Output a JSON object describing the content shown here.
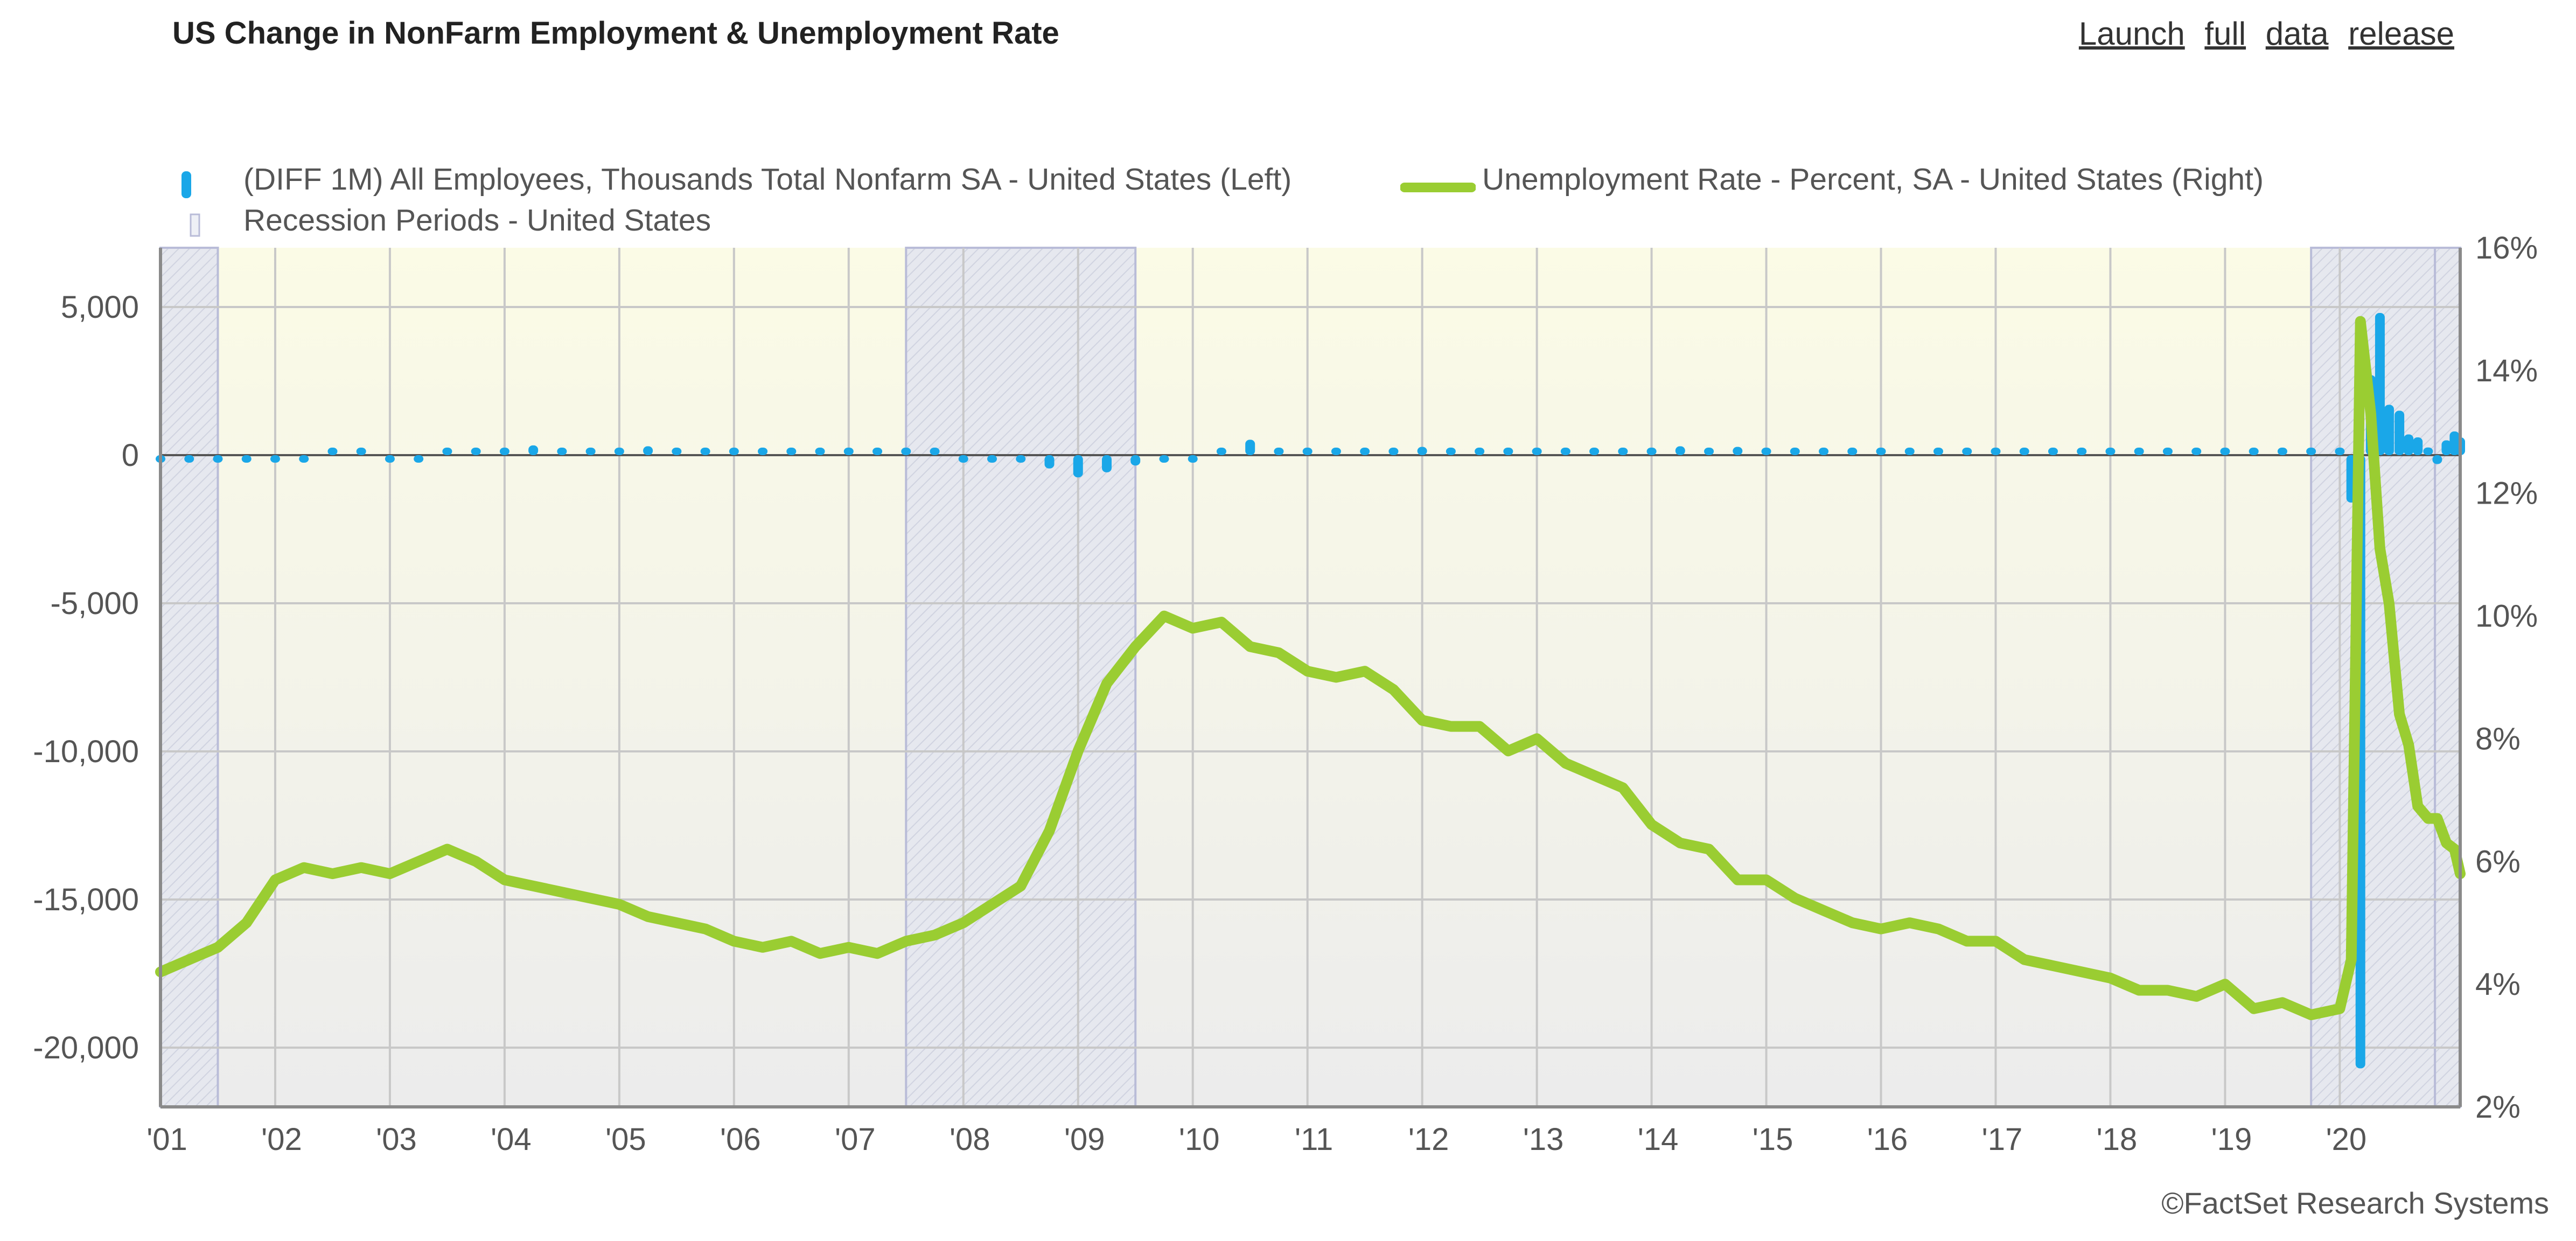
{
  "header": {
    "title": "US Change in NonFarm Employment & Unemployment Rate",
    "release_words": [
      "Launch",
      "full",
      "data",
      "release"
    ]
  },
  "legend": {
    "series1_label": "(DIFF 1M) All Employees, Thousands Total Nonfarm SA - United States (Left)",
    "series2_label": "Unemployment Rate - Percent, SA - United States (Right)",
    "recession_label": "Recession Periods - United States"
  },
  "footer": {
    "copyright": "©FactSet Research Systems"
  },
  "colors": {
    "payrolls": "#1aa7e8",
    "unemployment": "#9acd32",
    "recession_fill": "#e6e8ef",
    "recession_border": "#b9bcd8",
    "grid": "#c8c8c8",
    "plot_top": "#fbfbe6",
    "plot_bottom": "#ececec"
  },
  "chart_data": {
    "type": "line",
    "x_ticks": [
      "'01",
      "'02",
      "'03",
      "'04",
      "'05",
      "'06",
      "'07",
      "'08",
      "'09",
      "'10",
      "'11",
      "'12",
      "'13",
      "'14",
      "'15",
      "'16",
      "'17",
      "'18",
      "'19",
      "'20"
    ],
    "x_range": [
      2001.0,
      2021.05
    ],
    "y_left": {
      "range": [
        -22000,
        7000
      ],
      "ticks": [
        5000,
        0,
        -5000,
        -10000,
        -15000,
        -20000
      ],
      "tick_labels": [
        "5,000",
        "0",
        "-5,000",
        "-10,000",
        "-15,000",
        "-20,000"
      ]
    },
    "y_right": {
      "range": [
        2,
        16
      ],
      "ticks": [
        16,
        14,
        12,
        10,
        8,
        6,
        4,
        2
      ],
      "tick_labels": [
        "16%",
        "14%",
        "12%",
        "10%",
        "8%",
        "6%",
        "4%",
        "2%"
      ]
    },
    "recessions": [
      [
        2001.0,
        2001.5
      ],
      [
        2007.5,
        2009.5
      ],
      [
        2019.75,
        2020.83
      ],
      [
        2020.83,
        2021.05
      ]
    ],
    "series": [
      {
        "name": "(DIFF 1M) All Employees, Thousands Total Nonfarm SA - United States (Left)",
        "axis": "left",
        "points": [
          [
            2001.0,
            -80
          ],
          [
            2001.25,
            -120
          ],
          [
            2001.5,
            -200
          ],
          [
            2001.75,
            -250
          ],
          [
            2002.0,
            -120
          ],
          [
            2002.25,
            -40
          ],
          [
            2002.5,
            50
          ],
          [
            2002.75,
            0
          ],
          [
            2003.0,
            -150
          ],
          [
            2003.25,
            -60
          ],
          [
            2003.5,
            30
          ],
          [
            2003.75,
            150
          ],
          [
            2004.0,
            120
          ],
          [
            2004.25,
            330
          ],
          [
            2004.5,
            150
          ],
          [
            2004.75,
            180
          ],
          [
            2005.0,
            200
          ],
          [
            2005.25,
            300
          ],
          [
            2005.5,
            230
          ],
          [
            2005.75,
            80
          ],
          [
            2006.0,
            250
          ],
          [
            2006.25,
            180
          ],
          [
            2006.5,
            160
          ],
          [
            2006.75,
            130
          ],
          [
            2007.0,
            100
          ],
          [
            2007.25,
            120
          ],
          [
            2007.5,
            80
          ],
          [
            2007.75,
            60
          ],
          [
            2008.0,
            -20
          ],
          [
            2008.25,
            -140
          ],
          [
            2008.5,
            -200
          ],
          [
            2008.75,
            -450
          ],
          [
            2009.0,
            -750
          ],
          [
            2009.25,
            -580
          ],
          [
            2009.5,
            -350
          ],
          [
            2009.75,
            -200
          ],
          [
            2010.0,
            -60
          ],
          [
            2010.25,
            250
          ],
          [
            2010.5,
            520
          ],
          [
            2010.75,
            100
          ],
          [
            2011.0,
            60
          ],
          [
            2011.25,
            230
          ],
          [
            2011.5,
            110
          ],
          [
            2011.75,
            150
          ],
          [
            2012.0,
            280
          ],
          [
            2012.25,
            130
          ],
          [
            2012.5,
            150
          ],
          [
            2012.75,
            170
          ],
          [
            2013.0,
            200
          ],
          [
            2013.25,
            160
          ],
          [
            2013.5,
            180
          ],
          [
            2013.75,
            200
          ],
          [
            2014.0,
            180
          ],
          [
            2014.25,
            300
          ],
          [
            2014.5,
            230
          ],
          [
            2014.75,
            280
          ],
          [
            2015.0,
            200
          ],
          [
            2015.25,
            230
          ],
          [
            2015.5,
            220
          ],
          [
            2015.75,
            250
          ],
          [
            2016.0,
            180
          ],
          [
            2016.25,
            120
          ],
          [
            2016.5,
            240
          ],
          [
            2016.75,
            180
          ],
          [
            2017.0,
            200
          ],
          [
            2017.25,
            180
          ],
          [
            2017.5,
            190
          ],
          [
            2017.75,
            100
          ],
          [
            2018.0,
            200
          ],
          [
            2018.25,
            230
          ],
          [
            2018.5,
            170
          ],
          [
            2018.75,
            160
          ],
          [
            2019.0,
            250
          ],
          [
            2019.25,
            80
          ],
          [
            2019.5,
            160
          ],
          [
            2019.75,
            200
          ],
          [
            2020.0,
            250
          ],
          [
            2020.1,
            -1600
          ],
          [
            2020.18,
            -20700
          ],
          [
            2020.27,
            2700
          ],
          [
            2020.35,
            4800
          ],
          [
            2020.43,
            1700
          ],
          [
            2020.52,
            1500
          ],
          [
            2020.6,
            700
          ],
          [
            2020.68,
            600
          ],
          [
            2020.77,
            260
          ],
          [
            2020.85,
            -300
          ],
          [
            2020.93,
            500
          ],
          [
            2021.0,
            800
          ],
          [
            2021.05,
            600
          ]
        ]
      },
      {
        "name": "Unemployment Rate - Percent, SA - United States (Right)",
        "axis": "right",
        "points": [
          [
            2001.0,
            4.2
          ],
          [
            2001.25,
            4.4
          ],
          [
            2001.5,
            4.6
          ],
          [
            2001.75,
            5.0
          ],
          [
            2002.0,
            5.7
          ],
          [
            2002.25,
            5.9
          ],
          [
            2002.5,
            5.8
          ],
          [
            2002.75,
            5.9
          ],
          [
            2003.0,
            5.8
          ],
          [
            2003.25,
            6.0
          ],
          [
            2003.5,
            6.2
          ],
          [
            2003.75,
            6.0
          ],
          [
            2004.0,
            5.7
          ],
          [
            2004.25,
            5.6
          ],
          [
            2004.5,
            5.5
          ],
          [
            2004.75,
            5.4
          ],
          [
            2005.0,
            5.3
          ],
          [
            2005.25,
            5.1
          ],
          [
            2005.5,
            5.0
          ],
          [
            2005.75,
            4.9
          ],
          [
            2006.0,
            4.7
          ],
          [
            2006.25,
            4.6
          ],
          [
            2006.5,
            4.7
          ],
          [
            2006.75,
            4.5
          ],
          [
            2007.0,
            4.6
          ],
          [
            2007.25,
            4.5
          ],
          [
            2007.5,
            4.7
          ],
          [
            2007.75,
            4.8
          ],
          [
            2008.0,
            5.0
          ],
          [
            2008.25,
            5.3
          ],
          [
            2008.5,
            5.6
          ],
          [
            2008.75,
            6.5
          ],
          [
            2009.0,
            7.8
          ],
          [
            2009.25,
            8.9
          ],
          [
            2009.5,
            9.5
          ],
          [
            2009.75,
            10.0
          ],
          [
            2010.0,
            9.8
          ],
          [
            2010.25,
            9.9
          ],
          [
            2010.5,
            9.5
          ],
          [
            2010.75,
            9.4
          ],
          [
            2011.0,
            9.1
          ],
          [
            2011.25,
            9.0
          ],
          [
            2011.5,
            9.1
          ],
          [
            2011.75,
            8.8
          ],
          [
            2012.0,
            8.3
          ],
          [
            2012.25,
            8.2
          ],
          [
            2012.5,
            8.2
          ],
          [
            2012.75,
            7.8
          ],
          [
            2013.0,
            8.0
          ],
          [
            2013.25,
            7.6
          ],
          [
            2013.5,
            7.4
          ],
          [
            2013.75,
            7.2
          ],
          [
            2014.0,
            6.6
          ],
          [
            2014.25,
            6.3
          ],
          [
            2014.5,
            6.2
          ],
          [
            2014.75,
            5.7
          ],
          [
            2015.0,
            5.7
          ],
          [
            2015.25,
            5.4
          ],
          [
            2015.5,
            5.2
          ],
          [
            2015.75,
            5.0
          ],
          [
            2016.0,
            4.9
          ],
          [
            2016.25,
            5.0
          ],
          [
            2016.5,
            4.9
          ],
          [
            2016.75,
            4.7
          ],
          [
            2017.0,
            4.7
          ],
          [
            2017.25,
            4.4
          ],
          [
            2017.5,
            4.3
          ],
          [
            2017.75,
            4.2
          ],
          [
            2018.0,
            4.1
          ],
          [
            2018.25,
            3.9
          ],
          [
            2018.5,
            3.9
          ],
          [
            2018.75,
            3.8
          ],
          [
            2019.0,
            4.0
          ],
          [
            2019.25,
            3.6
          ],
          [
            2019.5,
            3.7
          ],
          [
            2019.75,
            3.5
          ],
          [
            2020.0,
            3.6
          ],
          [
            2020.1,
            4.4
          ],
          [
            2020.18,
            14.8
          ],
          [
            2020.27,
            13.3
          ],
          [
            2020.35,
            11.1
          ],
          [
            2020.43,
            10.2
          ],
          [
            2020.52,
            8.4
          ],
          [
            2020.6,
            7.9
          ],
          [
            2020.68,
            6.9
          ],
          [
            2020.77,
            6.7
          ],
          [
            2020.85,
            6.7
          ],
          [
            2020.93,
            6.3
          ],
          [
            2021.0,
            6.2
          ],
          [
            2021.05,
            5.8
          ]
        ]
      }
    ]
  }
}
